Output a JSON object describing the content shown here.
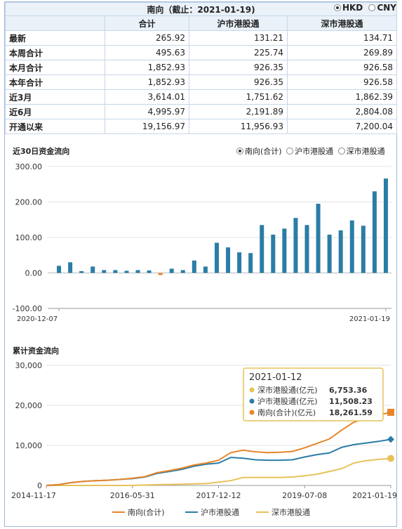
{
  "header": {
    "title": "南向（截止：2021-01-19)",
    "currency_options": [
      "HKD",
      "CNY"
    ],
    "currency_selected": "HKD"
  },
  "table": {
    "columns": [
      "",
      "合计",
      "沪市港股通",
      "深市港股通"
    ],
    "rows": [
      {
        "label": "最新",
        "total": "265.92",
        "sh": "131.21",
        "sz": "134.71"
      },
      {
        "label": "本周合计",
        "total": "495.63",
        "sh": "225.74",
        "sz": "269.89"
      },
      {
        "label": "本月合计",
        "total": "1,852.93",
        "sh": "926.35",
        "sz": "926.58"
      },
      {
        "label": "本年合计",
        "total": "1,852.93",
        "sh": "926.35",
        "sz": "926.58"
      },
      {
        "label": "近3月",
        "total": "3,614.01",
        "sh": "1,751.62",
        "sz": "1,862.39"
      },
      {
        "label": "近6月",
        "total": "4,995.97",
        "sh": "2,191.89",
        "sz": "2,804.08"
      },
      {
        "label": "开通以来",
        "total": "19,156.97",
        "sh": "11,956.93",
        "sz": "7,200.04"
      }
    ]
  },
  "colors": {
    "bar": "#2a7da6",
    "bar_negative": "#e8862a",
    "total_line": "#e8862a",
    "sh_line": "#2a7da6",
    "sz_line": "#e6c25a",
    "tooltip_border": "#e6c25a"
  },
  "chart_data": [
    {
      "type": "bar",
      "title": "近30日资金流向",
      "legend_options": [
        "南向(合计)",
        "沪市港股通",
        "深市港股通"
      ],
      "legend_selected": "南向(合计)",
      "x_start_label": "2020-12-07",
      "x_end_label": "2021-01-19",
      "ylim": [
        -100,
        300
      ],
      "yticks": [
        "300.00",
        "200.00",
        "100.00",
        "0.00",
        "-100.00"
      ],
      "ytick_values": [
        300,
        200,
        100,
        0,
        -100
      ],
      "values": [
        20,
        30,
        5,
        18,
        8,
        8,
        6,
        8,
        7,
        -6,
        12,
        8,
        35,
        18,
        85,
        72,
        58,
        56,
        135,
        108,
        125,
        155,
        135,
        195,
        108,
        120,
        148,
        133,
        230,
        266
      ]
    },
    {
      "type": "line",
      "title": "累计资金流向",
      "ylim": [
        0,
        30000
      ],
      "yticks": [
        "30,000",
        "20,000",
        "10,000",
        "0"
      ],
      "ytick_values": [
        30000,
        20000,
        10000,
        0
      ],
      "xtick_labels": [
        "2014-11-17",
        "2016-05-31",
        "2017-12-12",
        "2019-07-08",
        "2021-01-19"
      ],
      "series": [
        {
          "name": "南向(合计)",
          "values": [
            0,
            200,
            700,
            1000,
            1200,
            1300,
            1500,
            1800,
            2200,
            3200,
            3700,
            4300,
            5100,
            5600,
            6300,
            8200,
            8800,
            8400,
            8200,
            8300,
            8500,
            9400,
            10500,
            11600,
            13800,
            15800,
            16800,
            17600,
            18262
          ]
        },
        {
          "name": "沪市港股通",
          "values": [
            0,
            200,
            700,
            1000,
            1200,
            1300,
            1500,
            1700,
            2100,
            3000,
            3500,
            4000,
            4800,
            5300,
            5600,
            7000,
            6800,
            6400,
            6300,
            6300,
            6400,
            7100,
            7700,
            8100,
            9500,
            10200,
            10600,
            11000,
            11508
          ]
        },
        {
          "name": "深市港股通",
          "values": [
            0,
            0,
            0,
            0,
            0,
            0,
            0,
            0,
            100,
            200,
            250,
            300,
            400,
            500,
            800,
            1200,
            2000,
            2000,
            2000,
            2000,
            2100,
            2400,
            2800,
            3500,
            4200,
            5600,
            6200,
            6500,
            6753
          ]
        }
      ],
      "tooltip": {
        "date": "2021-01-12",
        "items": [
          {
            "label": "深市港股通(亿元)",
            "value": "6,753.36"
          },
          {
            "label": "沪市港股通(亿元)",
            "value": "11,508.23"
          },
          {
            "label": "南向(合计)(亿元)",
            "value": "18,261.59"
          }
        ]
      },
      "legend": [
        "南向(合计)",
        "沪市港股通",
        "深市港股通"
      ]
    }
  ]
}
